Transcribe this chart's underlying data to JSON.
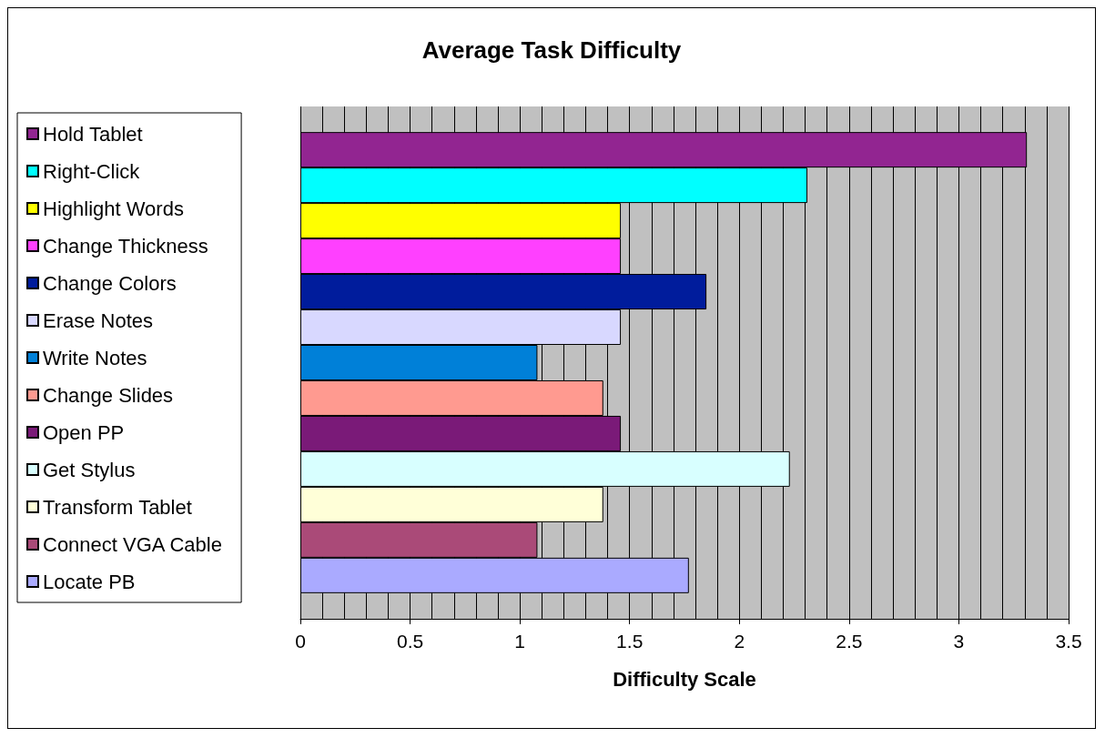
{
  "chart_data": {
    "type": "bar",
    "title": "Average Task Difficulty",
    "xlabel": "Difficulty Scale",
    "orientation": "horizontal",
    "categories": [
      null
    ],
    "series": [
      {
        "name": "Hold Tablet",
        "color": "#922591",
        "values": [
          3.31
        ]
      },
      {
        "name": "Right-Click",
        "color": "#00ffff",
        "values": [
          2.31
        ]
      },
      {
        "name": "Highlight Words",
        "color": "#ffff00",
        "values": [
          1.46
        ]
      },
      {
        "name": "Change Thickness",
        "color": "#ff40ff",
        "values": [
          1.46
        ]
      },
      {
        "name": "Change Colors",
        "color": "#001c9c",
        "values": [
          1.85
        ]
      },
      {
        "name": "Erase Notes",
        "color": "#d8d8ff",
        "values": [
          1.46
        ]
      },
      {
        "name": "Write Notes",
        "color": "#0080d8",
        "values": [
          1.08
        ]
      },
      {
        "name": "Change Slides",
        "color": "#ff9a90",
        "values": [
          1.38
        ]
      },
      {
        "name": "Open PP",
        "color": "#7a1a78",
        "values": [
          1.46
        ]
      },
      {
        "name": "Get Stylus",
        "color": "#d8ffff",
        "values": [
          2.23
        ]
      },
      {
        "name": "Transform Tablet",
        "color": "#ffffd8",
        "values": [
          1.38
        ]
      },
      {
        "name": "Connect VGA Cable",
        "color": "#aa4a78",
        "values": [
          1.08
        ]
      },
      {
        "name": "Locate PB",
        "color": "#aaaaff",
        "values": [
          1.77
        ]
      }
    ],
    "xlim": [
      0,
      3.5
    ],
    "xticks": [
      0,
      0.5,
      1,
      1.5,
      2,
      2.5,
      3,
      3.5
    ],
    "grid": "x",
    "legend": "left"
  }
}
